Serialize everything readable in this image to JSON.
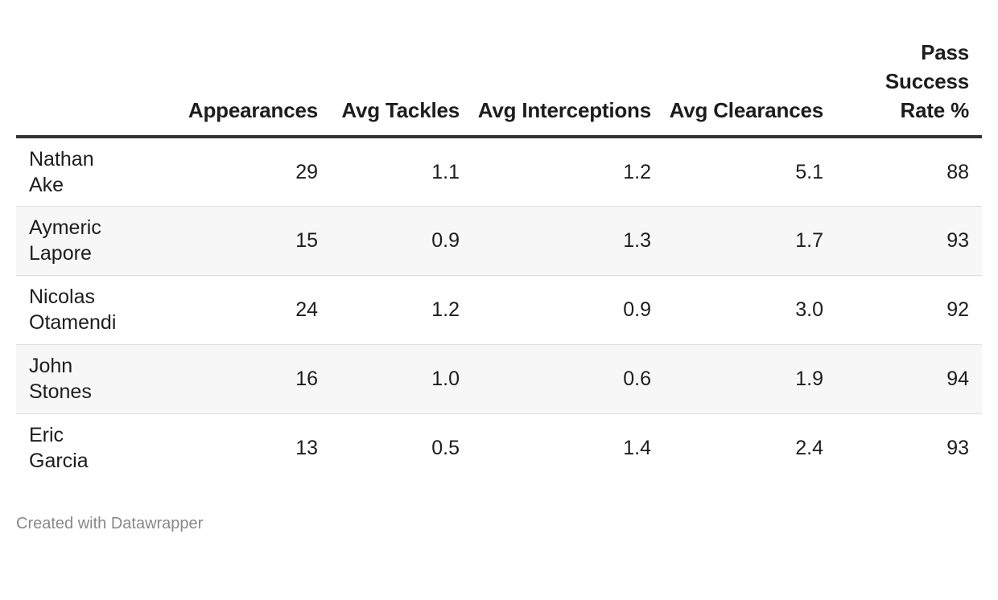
{
  "chart_data": {
    "type": "table",
    "columns": [
      "",
      "Appearances",
      "Avg Tackles",
      "Avg Interceptions",
      "Avg Clearances",
      "Pass Success Rate %"
    ],
    "rows": [
      {
        "name": "Nathan Ake",
        "appearances": "29",
        "avg_tackles": "1.1",
        "avg_interceptions": "1.2",
        "avg_clearances": "5.1",
        "pass_success_rate": "88"
      },
      {
        "name": "Aymeric Lapore",
        "appearances": "15",
        "avg_tackles": "0.9",
        "avg_interceptions": "1.3",
        "avg_clearances": "1.7",
        "pass_success_rate": "93"
      },
      {
        "name": "Nicolas Otamendi",
        "appearances": "24",
        "avg_tackles": "1.2",
        "avg_interceptions": "0.9",
        "avg_clearances": "3.0",
        "pass_success_rate": "92"
      },
      {
        "name": "John Stones",
        "appearances": "16",
        "avg_tackles": "1.0",
        "avg_interceptions": "0.6",
        "avg_clearances": "1.9",
        "pass_success_rate": "94"
      },
      {
        "name": "Eric Garcia",
        "appearances": "13",
        "avg_tackles": "0.5",
        "avg_interceptions": "1.4",
        "avg_clearances": "2.4",
        "pass_success_rate": "93"
      }
    ],
    "footer": "Created with Datawrapper",
    "colors": {
      "header_rule": "#333333",
      "row_divider": "#dddddd",
      "alt_row_bg": "#f7f7f7",
      "text": "#1d1d1d",
      "footer_text": "#888888"
    }
  }
}
